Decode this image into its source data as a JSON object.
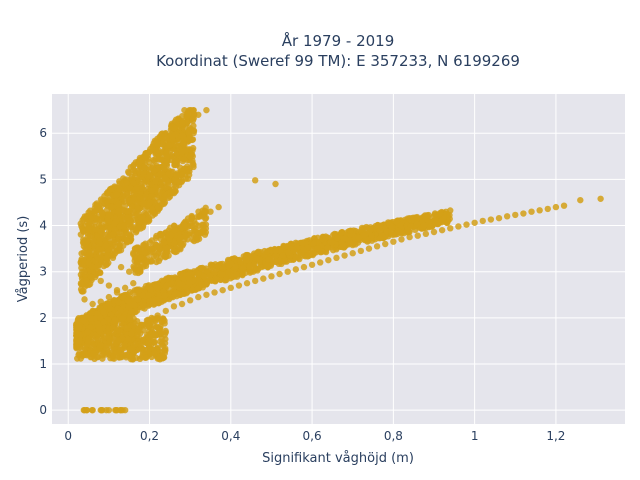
{
  "chart_data": {
    "type": "scatter",
    "title_line1": "År 1979 - 2019",
    "title_line2": "Koordinat (Sweref 99 TM): E 357233, N 6199269",
    "xlabel": "Signifikant våghöjd (m)",
    "ylabel": "Vågperiod (s)",
    "xlim": [
      -0.04,
      1.37
    ],
    "ylim": [
      -0.3,
      6.85
    ],
    "x_ticks": [
      0,
      0.2,
      0.4,
      0.6,
      0.8,
      1,
      1.2
    ],
    "x_tick_labels": [
      "0",
      "0,2",
      "0,4",
      "0,6",
      "0,8",
      "1",
      "1,2"
    ],
    "y_ticks": [
      0,
      1,
      2,
      3,
      4,
      5,
      6
    ],
    "y_tick_labels": [
      "0",
      "1",
      "2",
      "3",
      "4",
      "5",
      "6"
    ],
    "grid": true,
    "marker_color": "#D4A017",
    "background_color": "#E5E5EC",
    "series": [
      {
        "x": [
          0.03,
          0.05,
          0.07,
          0.09,
          0.11,
          0.13,
          0.15,
          0.04,
          0.06,
          0.08,
          0.1,
          0.12,
          0.14,
          0.16,
          0.18,
          0.2,
          0.22,
          0.24,
          0.26,
          0.28,
          0.3,
          0.32,
          0.34,
          0.36,
          0.38,
          0.4,
          0.42,
          0.44,
          0.46,
          0.48,
          0.5,
          0.52,
          0.54,
          0.56,
          0.58,
          0.6,
          0.62,
          0.64,
          0.66,
          0.68,
          0.7,
          0.72,
          0.74,
          0.76,
          0.78,
          0.8,
          0.82,
          0.84,
          0.86,
          0.88,
          0.9,
          0.92,
          0.94,
          0.96,
          0.98,
          1.0,
          1.02,
          1.04,
          1.06,
          1.08,
          1.1,
          1.12,
          1.14,
          1.16,
          1.18,
          1.2,
          1.22,
          1.26,
          1.31,
          0.05,
          0.07,
          0.09,
          0.11,
          0.13,
          0.15,
          0.17,
          0.19,
          0.21,
          0.23,
          0.25,
          0.27,
          0.29,
          0.06,
          0.08,
          0.1,
          0.12,
          0.14,
          0.16,
          0.18,
          0.2,
          0.22,
          0.24,
          0.26,
          0.28,
          0.3,
          0.32,
          0.34,
          0.25,
          0.27,
          0.29,
          0.31,
          0.33,
          0.35,
          0.37,
          0.05,
          0.07,
          0.09,
          0.11,
          0.13,
          0.15,
          0.17,
          0.19,
          0.21,
          0.23,
          0.08,
          0.1,
          0.12,
          0.14,
          0.04,
          0.06,
          0.08,
          0.1,
          0.12,
          0.14,
          0.16,
          0.2,
          0.22,
          0.24,
          0.26,
          0.28,
          0.46,
          0.51,
          0.04,
          0.06,
          0.08,
          0.1,
          0.12,
          0.14
        ],
        "y": [
          1.35,
          1.4,
          1.45,
          1.5,
          1.55,
          1.6,
          1.65,
          1.2,
          1.25,
          1.35,
          1.45,
          1.55,
          1.65,
          1.75,
          1.85,
          1.95,
          2.05,
          2.15,
          2.25,
          2.3,
          2.38,
          2.45,
          2.5,
          2.55,
          2.6,
          2.65,
          2.7,
          2.75,
          2.8,
          2.85,
          2.9,
          2.95,
          3.0,
          3.05,
          3.1,
          3.15,
          3.2,
          3.25,
          3.3,
          3.35,
          3.4,
          3.45,
          3.5,
          3.55,
          3.6,
          3.65,
          3.7,
          3.75,
          3.78,
          3.82,
          3.86,
          3.9,
          3.94,
          3.98,
          4.02,
          4.06,
          4.1,
          4.13,
          4.16,
          4.2,
          4.23,
          4.26,
          4.3,
          4.33,
          4.36,
          4.4,
          4.43,
          4.55,
          4.58,
          1.75,
          1.85,
          1.95,
          2.05,
          2.15,
          2.25,
          2.35,
          2.45,
          2.55,
          2.65,
          2.75,
          2.85,
          2.95,
          3.2,
          3.6,
          4.0,
          4.4,
          4.8,
          5.2,
          5.4,
          5.6,
          5.8,
          6.0,
          6.1,
          6.2,
          6.3,
          6.4,
          6.5,
          3.8,
          3.9,
          4.0,
          4.1,
          4.2,
          4.3,
          4.4,
          4.0,
          3.8,
          3.5,
          3.3,
          3.1,
          3.0,
          3.2,
          3.4,
          3.5,
          3.6,
          2.8,
          2.7,
          2.6,
          2.5,
          2.4,
          2.3,
          2.35,
          2.45,
          2.55,
          2.65,
          2.75,
          2.45,
          2.55,
          2.65,
          2.75,
          2.85,
          4.98,
          4.9,
          0.0,
          0.0,
          0.0,
          0.0,
          0.0,
          0.0
        ]
      }
    ]
  }
}
